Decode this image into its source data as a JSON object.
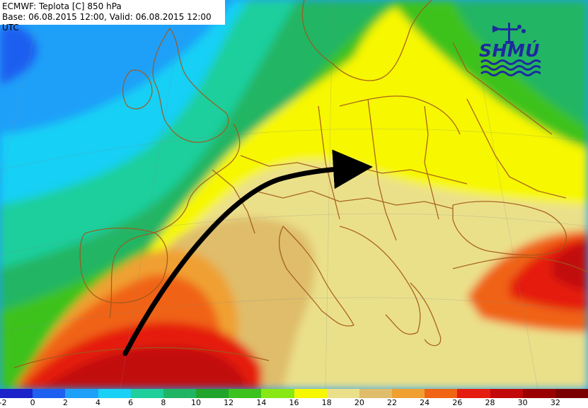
{
  "header": {
    "line1": "ECMWF: Teplota [C] 850 hPa",
    "line2": "Base: 06.08.2015 12:00, Valid: 06.08.2015 12:00 UTC"
  },
  "logo": {
    "text": "SHMÚ",
    "icon": "weather-station-icon",
    "color": "#1d2a9e"
  },
  "legend": {
    "colors": [
      "#1a23c9",
      "#1e5ff0",
      "#1fa0f8",
      "#19d0f5",
      "#1ecf9c",
      "#20b564",
      "#20a42c",
      "#3cc21e",
      "#88e814",
      "#f7f700",
      "#ebe08a",
      "#dfbd6a",
      "#f0a030",
      "#f06414",
      "#e51c10",
      "#c20808",
      "#9a0000",
      "#7a0000"
    ],
    "ticks": [
      "-2",
      "0",
      "2",
      "4",
      "6",
      "8",
      "10",
      "12",
      "14",
      "16",
      "18",
      "20",
      "22",
      "24",
      "26",
      "28",
      "30",
      "32"
    ]
  },
  "arrow": {
    "color": "#000000"
  }
}
